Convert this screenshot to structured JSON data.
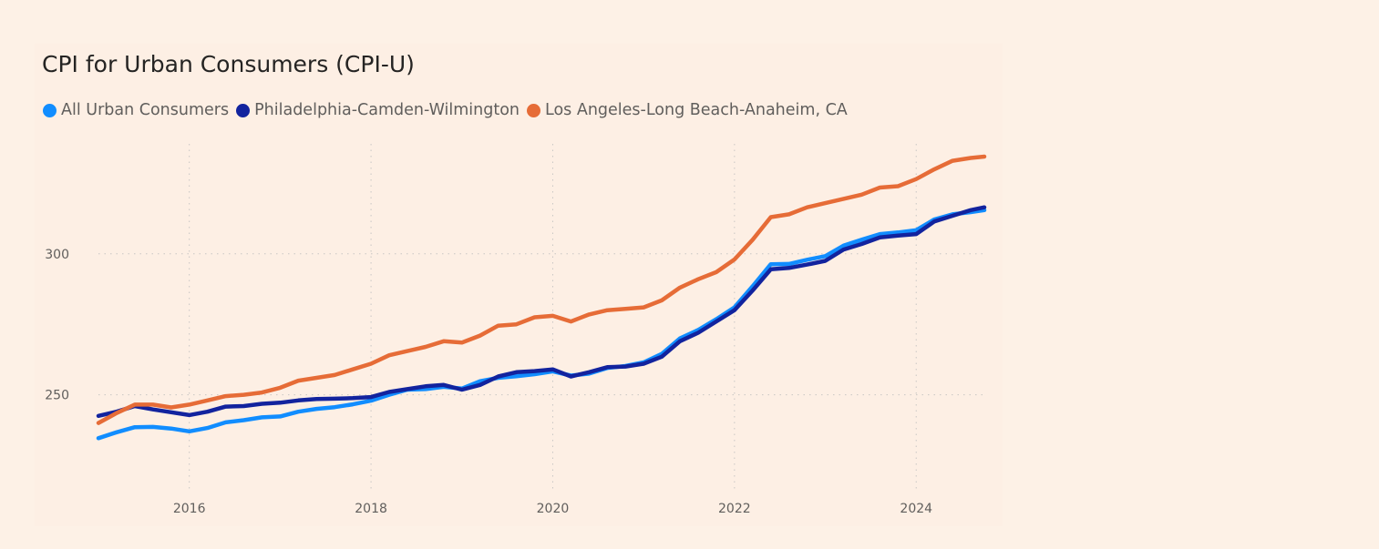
{
  "chart_data": {
    "type": "line",
    "title": "CPI for Urban Consumers (CPI-U)",
    "xlabel": "",
    "ylabel": "",
    "xlim": [
      2015.0,
      2024.75
    ],
    "ylim": [
      216.6,
      341.6
    ],
    "x_ticks": [
      2016,
      2018,
      2020,
      2022,
      2024
    ],
    "x_tick_labels": [
      "2016",
      "2018",
      "2020",
      "2022",
      "2024"
    ],
    "y_ticks": [
      250,
      300
    ],
    "y_tick_labels": [
      "250",
      "300"
    ],
    "grid": true,
    "legend_position": "top-left",
    "series": [
      {
        "name": "All Urban Consumers",
        "color": "#118dff",
        "points": [
          [
            2015.0,
            234.6
          ],
          [
            2015.2,
            236.7
          ],
          [
            2015.4,
            238.5
          ],
          [
            2015.6,
            238.6
          ],
          [
            2015.8,
            238.0
          ],
          [
            2016.0,
            237.0
          ],
          [
            2016.2,
            238.2
          ],
          [
            2016.4,
            240.2
          ],
          [
            2016.6,
            241.0
          ],
          [
            2016.8,
            242.0
          ],
          [
            2017.0,
            242.3
          ],
          [
            2017.2,
            244.0
          ],
          [
            2017.4,
            245.0
          ],
          [
            2017.6,
            245.6
          ],
          [
            2017.8,
            246.6
          ],
          [
            2018.0,
            247.9
          ],
          [
            2018.2,
            250.0
          ],
          [
            2018.4,
            251.8
          ],
          [
            2018.6,
            252.0
          ],
          [
            2018.8,
            252.8
          ],
          [
            2019.0,
            252.2
          ],
          [
            2019.2,
            254.8
          ],
          [
            2019.4,
            256.0
          ],
          [
            2019.6,
            256.6
          ],
          [
            2019.8,
            257.3
          ],
          [
            2020.0,
            258.3
          ],
          [
            2020.2,
            256.8
          ],
          [
            2020.4,
            257.5
          ],
          [
            2020.6,
            259.5
          ],
          [
            2020.8,
            260.2
          ],
          [
            2021.0,
            261.5
          ],
          [
            2021.2,
            264.5
          ],
          [
            2021.4,
            270.0
          ],
          [
            2021.6,
            273.0
          ],
          [
            2021.8,
            276.8
          ],
          [
            2022.0,
            281.0
          ],
          [
            2022.2,
            288.5
          ],
          [
            2022.4,
            296.3
          ],
          [
            2022.6,
            296.4
          ],
          [
            2022.8,
            297.9
          ],
          [
            2023.0,
            299.2
          ],
          [
            2023.2,
            302.9
          ],
          [
            2023.4,
            305.0
          ],
          [
            2023.6,
            307.0
          ],
          [
            2023.8,
            307.6
          ],
          [
            2024.0,
            308.4
          ],
          [
            2024.2,
            312.2
          ],
          [
            2024.4,
            314.0
          ],
          [
            2024.6,
            314.8
          ],
          [
            2024.75,
            315.5
          ]
        ]
      },
      {
        "name": "Philadelphia-Camden-Wilmington",
        "color": "#12239e",
        "points": [
          [
            2015.0,
            242.5
          ],
          [
            2015.2,
            244.0
          ],
          [
            2015.4,
            246.0
          ],
          [
            2015.6,
            244.8
          ],
          [
            2015.8,
            243.8
          ],
          [
            2016.0,
            242.8
          ],
          [
            2016.2,
            244.0
          ],
          [
            2016.4,
            245.8
          ],
          [
            2016.6,
            246.0
          ],
          [
            2016.8,
            246.8
          ],
          [
            2017.0,
            247.2
          ],
          [
            2017.2,
            248.0
          ],
          [
            2017.4,
            248.5
          ],
          [
            2017.6,
            248.6
          ],
          [
            2017.8,
            248.8
          ],
          [
            2018.0,
            249.2
          ],
          [
            2018.2,
            251.0
          ],
          [
            2018.4,
            252.0
          ],
          [
            2018.6,
            253.0
          ],
          [
            2018.8,
            253.5
          ],
          [
            2019.0,
            251.8
          ],
          [
            2019.2,
            253.5
          ],
          [
            2019.4,
            256.5
          ],
          [
            2019.6,
            258.0
          ],
          [
            2019.8,
            258.4
          ],
          [
            2020.0,
            259.0
          ],
          [
            2020.2,
            256.5
          ],
          [
            2020.4,
            258.0
          ],
          [
            2020.6,
            259.8
          ],
          [
            2020.8,
            260.0
          ],
          [
            2021.0,
            261.0
          ],
          [
            2021.2,
            263.5
          ],
          [
            2021.4,
            269.0
          ],
          [
            2021.6,
            272.0
          ],
          [
            2021.8,
            276.0
          ],
          [
            2022.0,
            280.0
          ],
          [
            2022.2,
            287.0
          ],
          [
            2022.4,
            294.5
          ],
          [
            2022.6,
            295.0
          ],
          [
            2022.8,
            296.2
          ],
          [
            2023.0,
            297.5
          ],
          [
            2023.2,
            301.5
          ],
          [
            2023.4,
            303.5
          ],
          [
            2023.6,
            305.8
          ],
          [
            2023.8,
            306.5
          ],
          [
            2024.0,
            307.0
          ],
          [
            2024.2,
            311.5
          ],
          [
            2024.4,
            313.5
          ],
          [
            2024.6,
            315.5
          ],
          [
            2024.75,
            316.5
          ]
        ]
      },
      {
        "name": "Los Angeles-Long Beach-Anaheim, CA",
        "color": "#e66c37",
        "points": [
          [
            2015.0,
            240.0
          ],
          [
            2015.2,
            243.5
          ],
          [
            2015.4,
            246.5
          ],
          [
            2015.6,
            246.5
          ],
          [
            2015.8,
            245.5
          ],
          [
            2016.0,
            246.5
          ],
          [
            2016.2,
            248.0
          ],
          [
            2016.4,
            249.5
          ],
          [
            2016.6,
            250.0
          ],
          [
            2016.8,
            250.8
          ],
          [
            2017.0,
            252.5
          ],
          [
            2017.2,
            255.0
          ],
          [
            2017.4,
            256.0
          ],
          [
            2017.6,
            257.0
          ],
          [
            2017.8,
            259.0
          ],
          [
            2018.0,
            261.0
          ],
          [
            2018.2,
            264.0
          ],
          [
            2018.4,
            265.5
          ],
          [
            2018.6,
            267.0
          ],
          [
            2018.8,
            269.0
          ],
          [
            2019.0,
            268.5
          ],
          [
            2019.2,
            271.0
          ],
          [
            2019.4,
            274.5
          ],
          [
            2019.6,
            275.0
          ],
          [
            2019.8,
            277.5
          ],
          [
            2020.0,
            278.0
          ],
          [
            2020.2,
            276.0
          ],
          [
            2020.4,
            278.5
          ],
          [
            2020.6,
            280.0
          ],
          [
            2020.8,
            280.5
          ],
          [
            2021.0,
            281.0
          ],
          [
            2021.2,
            283.5
          ],
          [
            2021.4,
            288.0
          ],
          [
            2021.6,
            291.0
          ],
          [
            2021.8,
            293.5
          ],
          [
            2022.0,
            298.0
          ],
          [
            2022.2,
            305.0
          ],
          [
            2022.4,
            313.0
          ],
          [
            2022.6,
            314.0
          ],
          [
            2022.8,
            316.5
          ],
          [
            2023.0,
            318.0
          ],
          [
            2023.2,
            319.5
          ],
          [
            2023.4,
            321.0
          ],
          [
            2023.6,
            323.5
          ],
          [
            2023.8,
            324.0
          ],
          [
            2024.0,
            326.5
          ],
          [
            2024.2,
            330.0
          ],
          [
            2024.4,
            333.0
          ],
          [
            2024.6,
            334.0
          ],
          [
            2024.75,
            334.5
          ]
        ]
      }
    ]
  }
}
